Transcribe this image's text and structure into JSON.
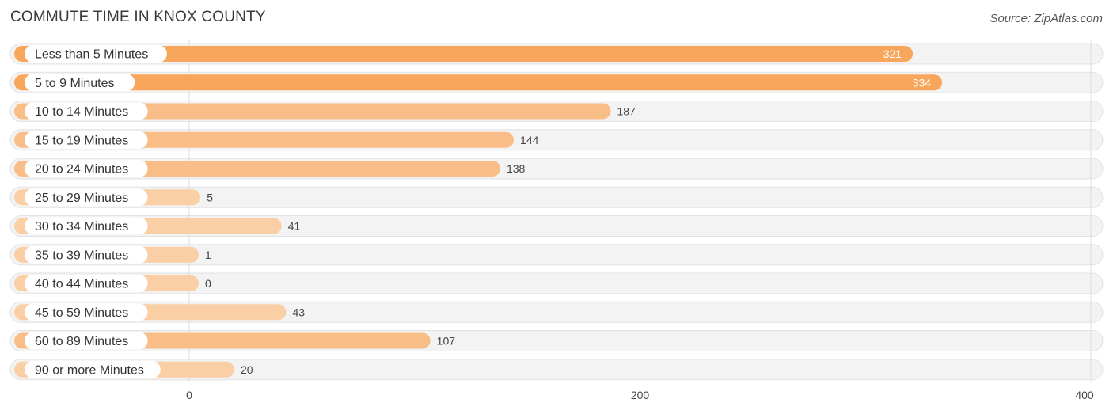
{
  "header": {
    "title": "COMMUTE TIME IN KNOX COUNTY",
    "source": "Source: ZipAtlas.com"
  },
  "chart_data": {
    "type": "bar",
    "orientation": "horizontal",
    "title": "COMMUTE TIME IN KNOX COUNTY",
    "xlabel": "",
    "ylabel": "",
    "xlim": [
      0,
      400
    ],
    "ticks": [
      0,
      200,
      400
    ],
    "tick_labels": [
      "0",
      "200",
      "400"
    ],
    "grid": true,
    "categories": [
      "Less than 5 Minutes",
      "5 to 9 Minutes",
      "10 to 14 Minutes",
      "15 to 19 Minutes",
      "20 to 24 Minutes",
      "25 to 29 Minutes",
      "30 to 34 Minutes",
      "35 to 39 Minutes",
      "40 to 44 Minutes",
      "45 to 59 Minutes",
      "60 to 89 Minutes",
      "90 or more Minutes"
    ],
    "values": [
      321,
      334,
      187,
      144,
      138,
      5,
      41,
      1,
      0,
      43,
      107,
      20
    ],
    "colors": {
      "strong": "#f7a65c",
      "medium": "#f9bd88",
      "light": "#fbcfa6",
      "value_inside": "#ffffff",
      "value_outside": "#444444"
    }
  }
}
